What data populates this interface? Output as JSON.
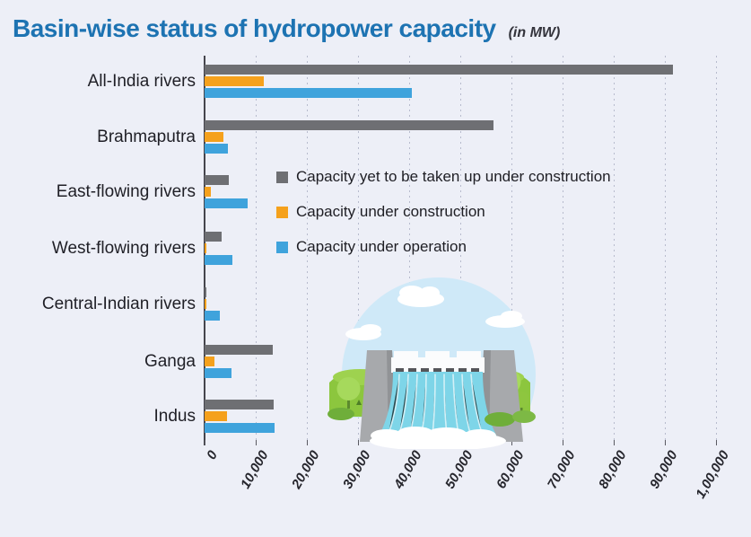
{
  "title": {
    "text": "Basin-wise status of hydropower capacity",
    "unit": "(in MW)"
  },
  "colors": {
    "background": "#edeff7",
    "title": "#1d73b2",
    "grid": "#b7bbcd",
    "axis": "#45454d",
    "text": "#1f1f26",
    "series_yet": "#6e6f73",
    "series_construction": "#f5a11c",
    "series_operation": "#3fa3dc"
  },
  "legend": {
    "items": [
      {
        "label": "Capacity yet to be taken up under construction",
        "series": "yet"
      },
      {
        "label": "Capacity  under construction",
        "series": "construction"
      },
      {
        "label": "Capacity under operation",
        "series": "operation"
      }
    ]
  },
  "chart_data": {
    "type": "bar",
    "orientation": "horizontal",
    "title": "Basin-wise status of hydropower capacity",
    "unit": "MW",
    "categories": [
      "All-India rivers",
      "Brahmaputra",
      "East-flowing rivers",
      "West-flowing rivers",
      "Central-Indian rivers",
      "Ganga",
      "Indus"
    ],
    "series": [
      {
        "name": "Capacity yet to be taken up under construction",
        "color": "#6e6f73",
        "values": [
          91500,
          56500,
          4800,
          3400,
          300,
          13300,
          13500
        ]
      },
      {
        "name": "Capacity  under construction",
        "color": "#f5a11c",
        "values": [
          11500,
          3600,
          1200,
          200,
          200,
          2000,
          4400
        ]
      },
      {
        "name": "Capacity under operation",
        "color": "#3fa3dc",
        "values": [
          40500,
          4500,
          8500,
          5500,
          3000,
          5300,
          13700
        ]
      }
    ],
    "xlim": [
      0,
      100000
    ],
    "x_ticks": [
      0,
      10000,
      20000,
      30000,
      40000,
      50000,
      60000,
      70000,
      80000,
      90000,
      100000
    ],
    "x_tick_labels": [
      "0",
      "10,000",
      "20,000",
      "30,000",
      "40,000",
      "50,000",
      "60,000",
      "70,000",
      "80,000",
      "90,000",
      "1,00,000"
    ],
    "grid": "vertical-dotted",
    "legend_position": "center-right"
  },
  "illustration": {
    "name": "dam-waterfall-illustration"
  }
}
